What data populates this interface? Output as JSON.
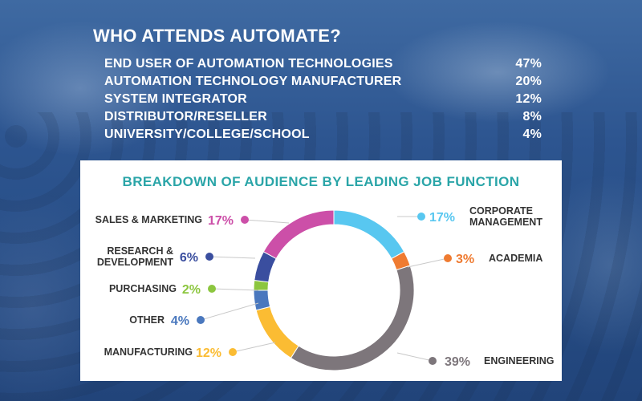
{
  "headline": "WHO ATTENDS AUTOMATE?",
  "attendee_types": [
    {
      "label": "END USER OF AUTOMATION TECHNOLOGIES",
      "value": "47%"
    },
    {
      "label": "AUTOMATION TECHNOLOGY MANUFACTURER",
      "value": "20%"
    },
    {
      "label": "SYSTEM INTEGRATOR",
      "value": "12%"
    },
    {
      "label": "DISTRIBUTOR/RESELLER",
      "value": "8%"
    },
    {
      "label": "UNIVERSITY/COLLEGE/SCHOOL",
      "value": "4%"
    }
  ],
  "chart_data": {
    "type": "pie",
    "title": "BREAKDOWN OF AUDIENCE BY LEADING JOB FUNCTION",
    "series": [
      {
        "name": "CORPORATE MANAGEMENT",
        "lines": [
          "CORPORATE",
          "MANAGEMENT"
        ],
        "value": 17,
        "label": "17%",
        "color": "#58c7f0"
      },
      {
        "name": "ACADEMIA",
        "lines": [
          "ACADEMIA"
        ],
        "value": 3,
        "label": "3%",
        "color": "#ef7b31"
      },
      {
        "name": "ENGINEERING",
        "lines": [
          "ENGINEERING"
        ],
        "value": 39,
        "label": "39%",
        "color": "#7d767b"
      },
      {
        "name": "MANUFACTURING",
        "lines": [
          "MANUFACTURING"
        ],
        "value": 12,
        "label": "12%",
        "color": "#fbbc33"
      },
      {
        "name": "OTHER",
        "lines": [
          "OTHER"
        ],
        "value": 4,
        "label": "4%",
        "color": "#4a78be"
      },
      {
        "name": "PURCHASING",
        "lines": [
          "PURCHASING"
        ],
        "value": 2,
        "label": "2%",
        "color": "#8cc63f"
      },
      {
        "name": "RESEARCH & DEVELOPMENT",
        "lines": [
          "RESEARCH &",
          "DEVELOPMENT"
        ],
        "value": 6,
        "label": "6%",
        "color": "#3a4e9f"
      },
      {
        "name": "SALES & MARKETING",
        "lines": [
          "SALES & MARKETING"
        ],
        "value": 17,
        "label": "17%",
        "color": "#cc4fa8"
      }
    ]
  }
}
